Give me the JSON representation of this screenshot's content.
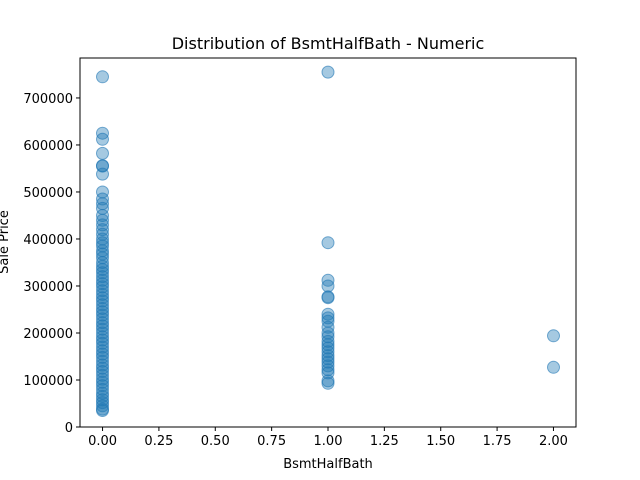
{
  "chart_data": {
    "type": "scatter",
    "title": "Distribution of BsmtHalfBath - Numeric",
    "xlabel": "BsmtHalfBath",
    "ylabel": "Sale Price",
    "xlim": [
      -0.1,
      2.1
    ],
    "ylim": [
      0,
      785000
    ],
    "xticks": [
      0.0,
      0.25,
      0.5,
      0.75,
      1.0,
      1.25,
      1.5,
      1.75,
      2.0
    ],
    "xtick_labels": [
      "0.00",
      "0.25",
      "0.50",
      "0.75",
      "1.00",
      "1.25",
      "1.50",
      "1.75",
      "2.00"
    ],
    "yticks": [
      0,
      100000,
      200000,
      300000,
      400000,
      500000,
      600000,
      700000
    ],
    "ytick_labels": [
      "0",
      "100000",
      "200000",
      "300000",
      "400000",
      "500000",
      "600000",
      "700000"
    ],
    "grid": false,
    "marker_color": "#1f77b4",
    "marker_alpha": 0.4,
    "points": [
      [
        0,
        745000
      ],
      [
        0,
        625000
      ],
      [
        0,
        612000
      ],
      [
        0,
        582000
      ],
      [
        0,
        556000
      ],
      [
        0,
        555000
      ],
      [
        0,
        538000
      ],
      [
        0,
        500000
      ],
      [
        0,
        485000
      ],
      [
        0,
        475000
      ],
      [
        0,
        465000
      ],
      [
        0,
        450000
      ],
      [
        0,
        440000
      ],
      [
        0,
        430000
      ],
      [
        0,
        420000
      ],
      [
        0,
        410000
      ],
      [
        0,
        400000
      ],
      [
        0,
        392000
      ],
      [
        0,
        385000
      ],
      [
        0,
        375000
      ],
      [
        0,
        368000
      ],
      [
        0,
        360000
      ],
      [
        0,
        350000
      ],
      [
        0,
        342000
      ],
      [
        0,
        335000
      ],
      [
        0,
        328000
      ],
      [
        0,
        320000
      ],
      [
        0,
        312000
      ],
      [
        0,
        305000
      ],
      [
        0,
        298000
      ],
      [
        0,
        290000
      ],
      [
        0,
        282000
      ],
      [
        0,
        275000
      ],
      [
        0,
        268000
      ],
      [
        0,
        260000
      ],
      [
        0,
        252000
      ],
      [
        0,
        245000
      ],
      [
        0,
        238000
      ],
      [
        0,
        230000
      ],
      [
        0,
        222000
      ],
      [
        0,
        215000
      ],
      [
        0,
        208000
      ],
      [
        0,
        200000
      ],
      [
        0,
        192000
      ],
      [
        0,
        185000
      ],
      [
        0,
        178000
      ],
      [
        0,
        170000
      ],
      [
        0,
        162000
      ],
      [
        0,
        155000
      ],
      [
        0,
        148000
      ],
      [
        0,
        140000
      ],
      [
        0,
        132000
      ],
      [
        0,
        125000
      ],
      [
        0,
        118000
      ],
      [
        0,
        110000
      ],
      [
        0,
        102000
      ],
      [
        0,
        95000
      ],
      [
        0,
        88000
      ],
      [
        0,
        80000
      ],
      [
        0,
        72000
      ],
      [
        0,
        65000
      ],
      [
        0,
        58000
      ],
      [
        0,
        52000
      ],
      [
        0,
        45000
      ],
      [
        0,
        38000
      ],
      [
        0,
        35000
      ],
      [
        1,
        755000
      ],
      [
        1,
        392000
      ],
      [
        1,
        312000
      ],
      [
        1,
        300000
      ],
      [
        1,
        277000
      ],
      [
        1,
        275000
      ],
      [
        1,
        240000
      ],
      [
        1,
        232000
      ],
      [
        1,
        225000
      ],
      [
        1,
        212000
      ],
      [
        1,
        200000
      ],
      [
        1,
        192000
      ],
      [
        1,
        182000
      ],
      [
        1,
        175000
      ],
      [
        1,
        168000
      ],
      [
        1,
        160000
      ],
      [
        1,
        152000
      ],
      [
        1,
        145000
      ],
      [
        1,
        138000
      ],
      [
        1,
        130000
      ],
      [
        1,
        122000
      ],
      [
        1,
        115000
      ],
      [
        1,
        98000
      ],
      [
        1,
        93000
      ],
      [
        2,
        194000
      ],
      [
        2,
        127000
      ]
    ]
  }
}
